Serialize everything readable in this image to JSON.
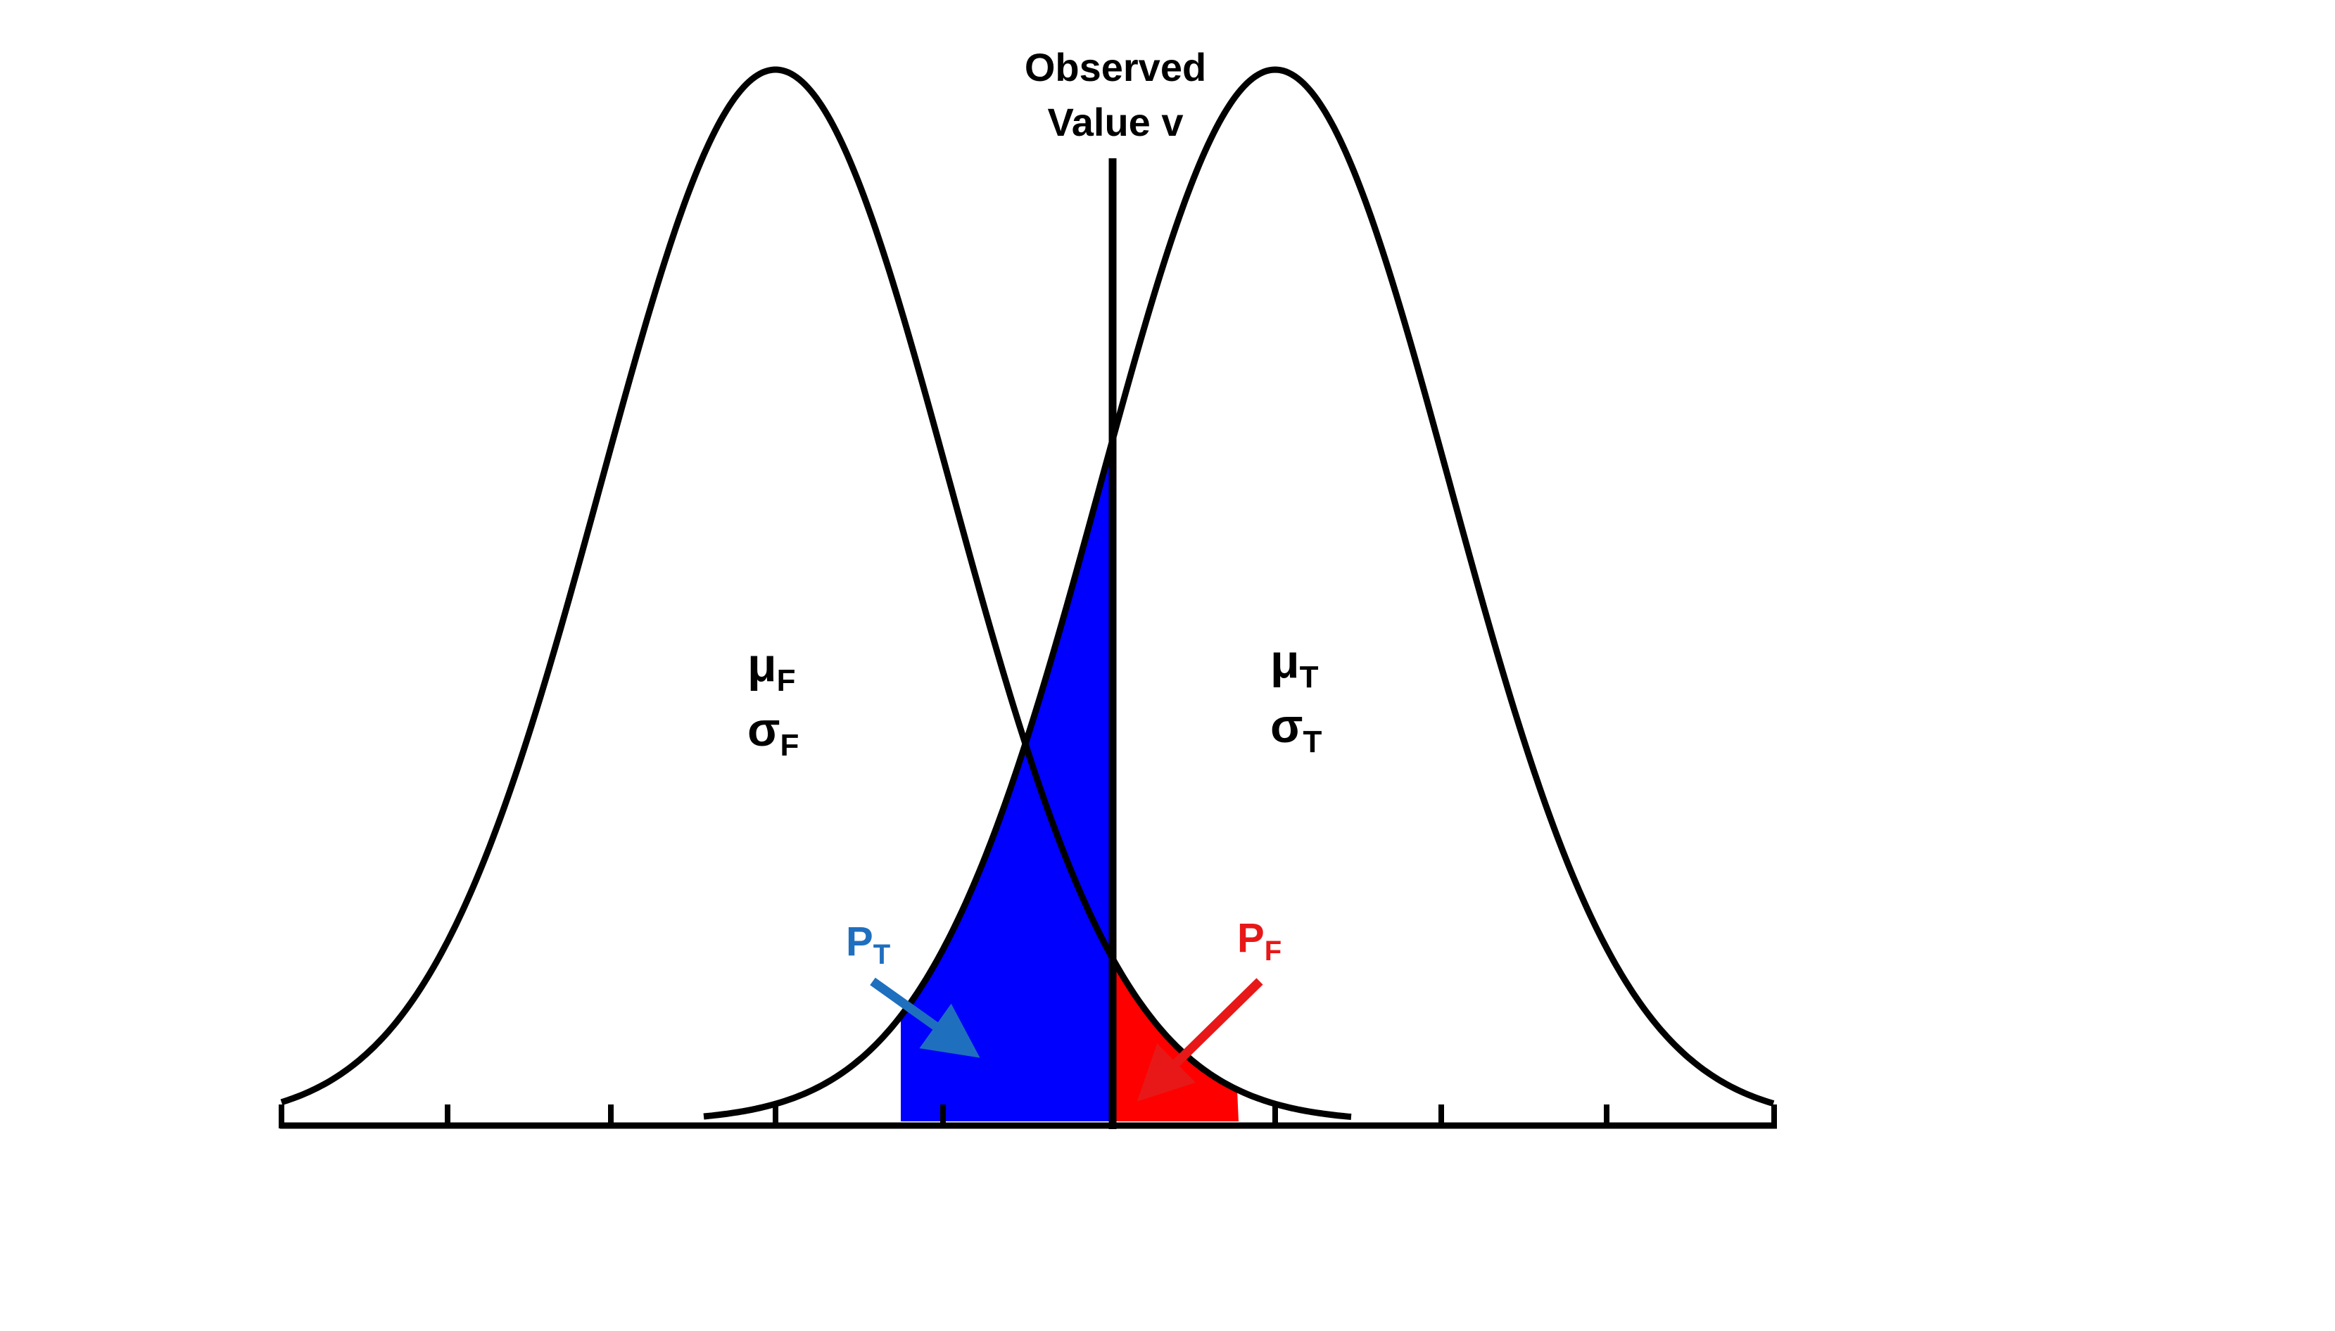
{
  "observed_label": {
    "line1": "Observed",
    "line2": "Value v"
  },
  "false_dist": {
    "mu": "μ",
    "mu_sub": "F",
    "sigma": "σ",
    "sigma_sub": "F"
  },
  "true_dist": {
    "mu": "μ",
    "mu_sub": "T",
    "sigma": "σ",
    "sigma_sub": "T"
  },
  "prob_true": {
    "main": "P",
    "sub": "T",
    "color": "#1f6fbf"
  },
  "prob_false": {
    "main": "P",
    "sub": "F",
    "color": "#e81818"
  },
  "fill_colors": {
    "true_area": "#0000ff",
    "false_area": "#ff0000"
  },
  "icons": {
    "arrow_true": "arrow-icon",
    "arrow_false": "arrow-icon"
  }
}
